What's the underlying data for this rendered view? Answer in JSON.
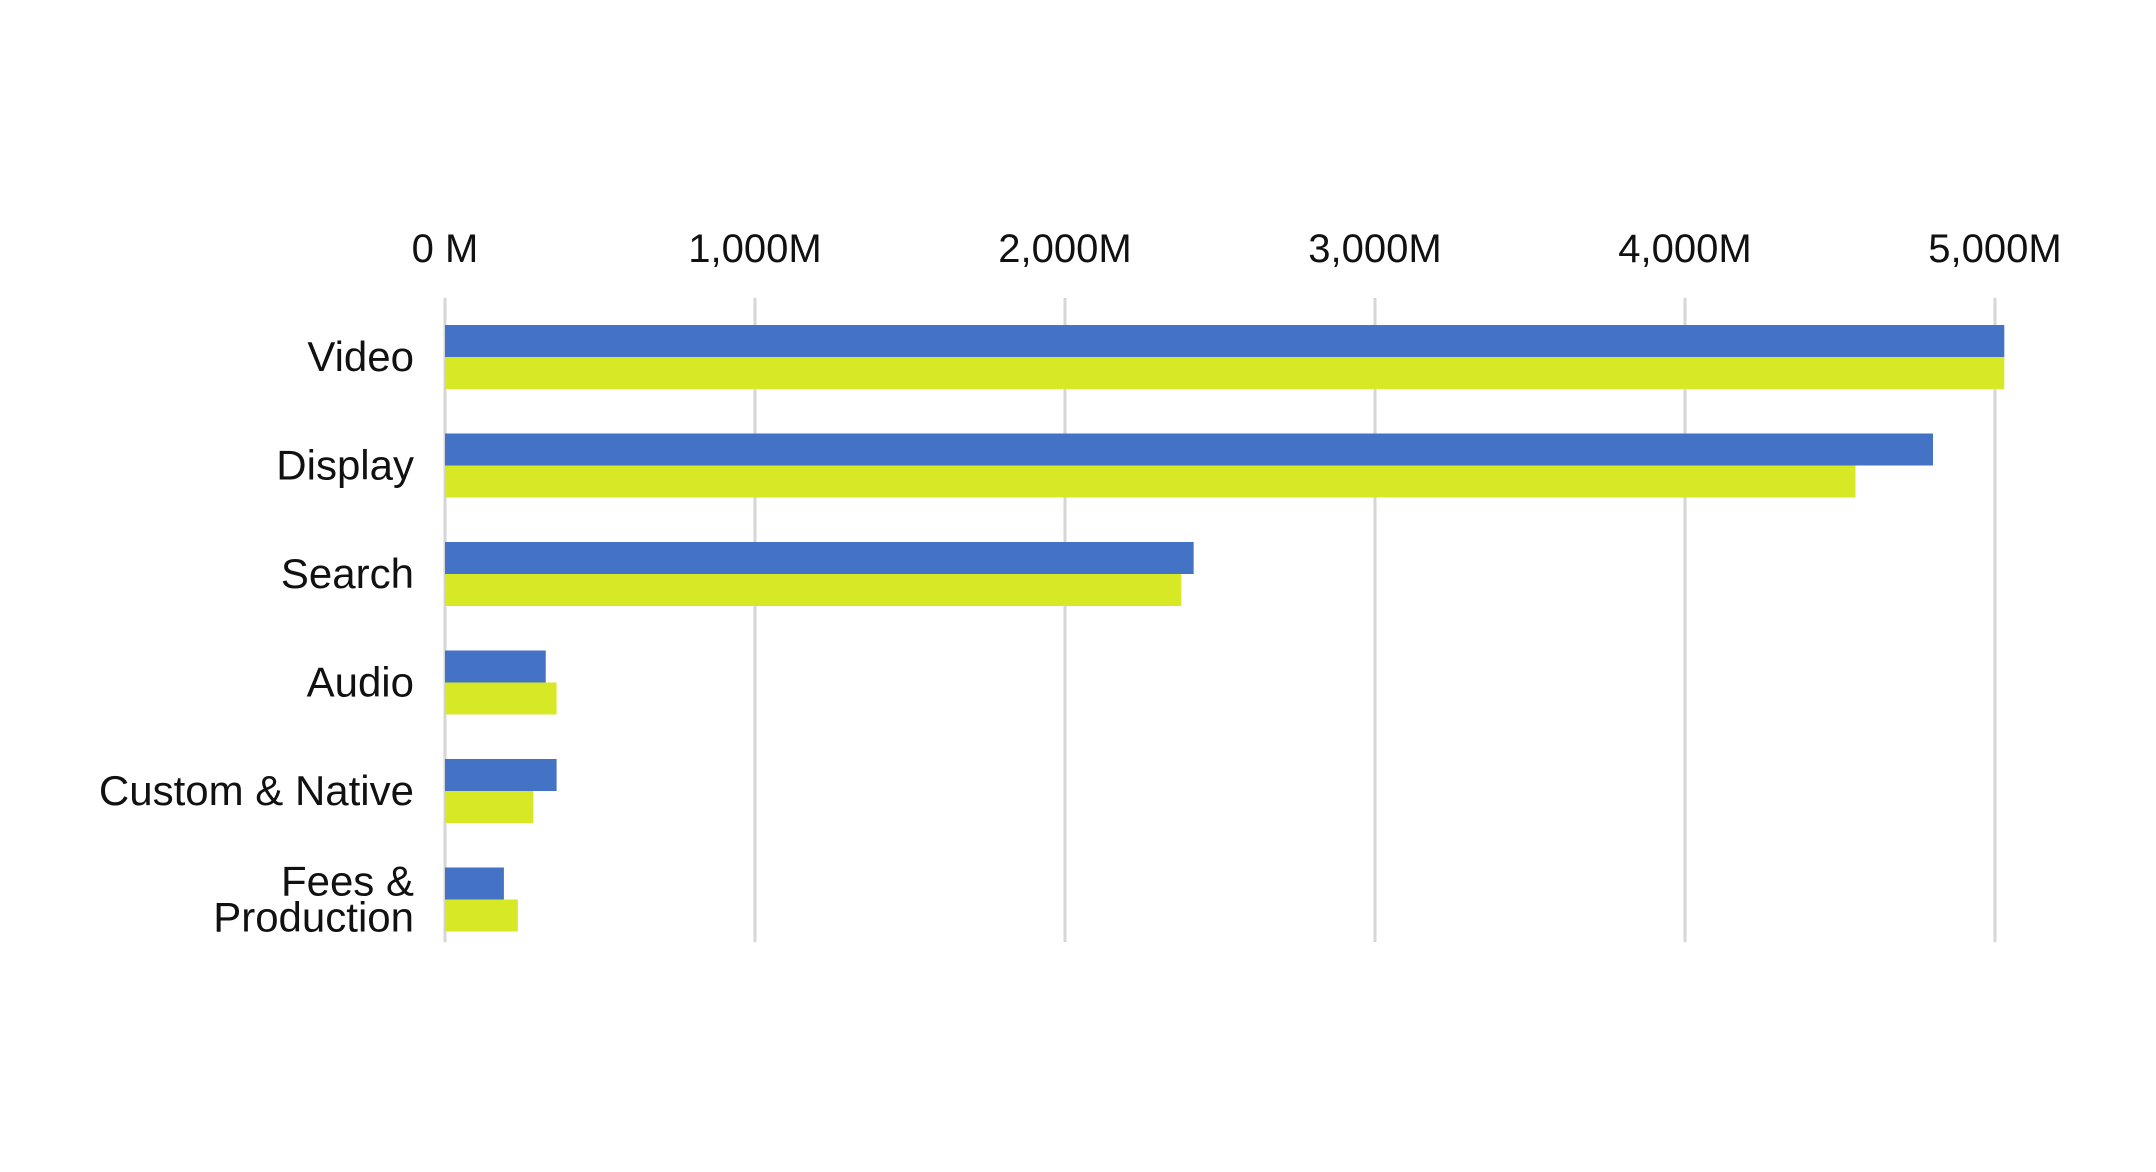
{
  "chart_data": {
    "type": "bar",
    "orientation": "horizontal",
    "title": "",
    "xlabel": "",
    "ylabel": "",
    "categories": [
      [
        "Video"
      ],
      [
        "Display"
      ],
      [
        "Search"
      ],
      [
        "Audio"
      ],
      [
        "Custom & Native"
      ],
      [
        "Fees &",
        "Production"
      ]
    ],
    "series": [
      {
        "values": [
          5030,
          4800,
          2415,
          325,
          360,
          190
        ],
        "color": "#4472c4"
      },
      {
        "values": [
          5030,
          4550,
          2375,
          360,
          285,
          235
        ],
        "color": "#d7e824"
      }
    ],
    "xlim": [
      0,
      5000
    ],
    "x_ticks": [
      0,
      1000,
      2000,
      3000,
      4000,
      5000
    ],
    "x_tick_labels": [
      "0 M",
      "1,000M",
      "2,000M",
      "3,000M",
      "4,000M",
      "5,000M"
    ],
    "x_axis_position": "top",
    "grid": true,
    "legend": "none",
    "gridline_color": "#d6d6d6",
    "text_color": "#111111"
  }
}
